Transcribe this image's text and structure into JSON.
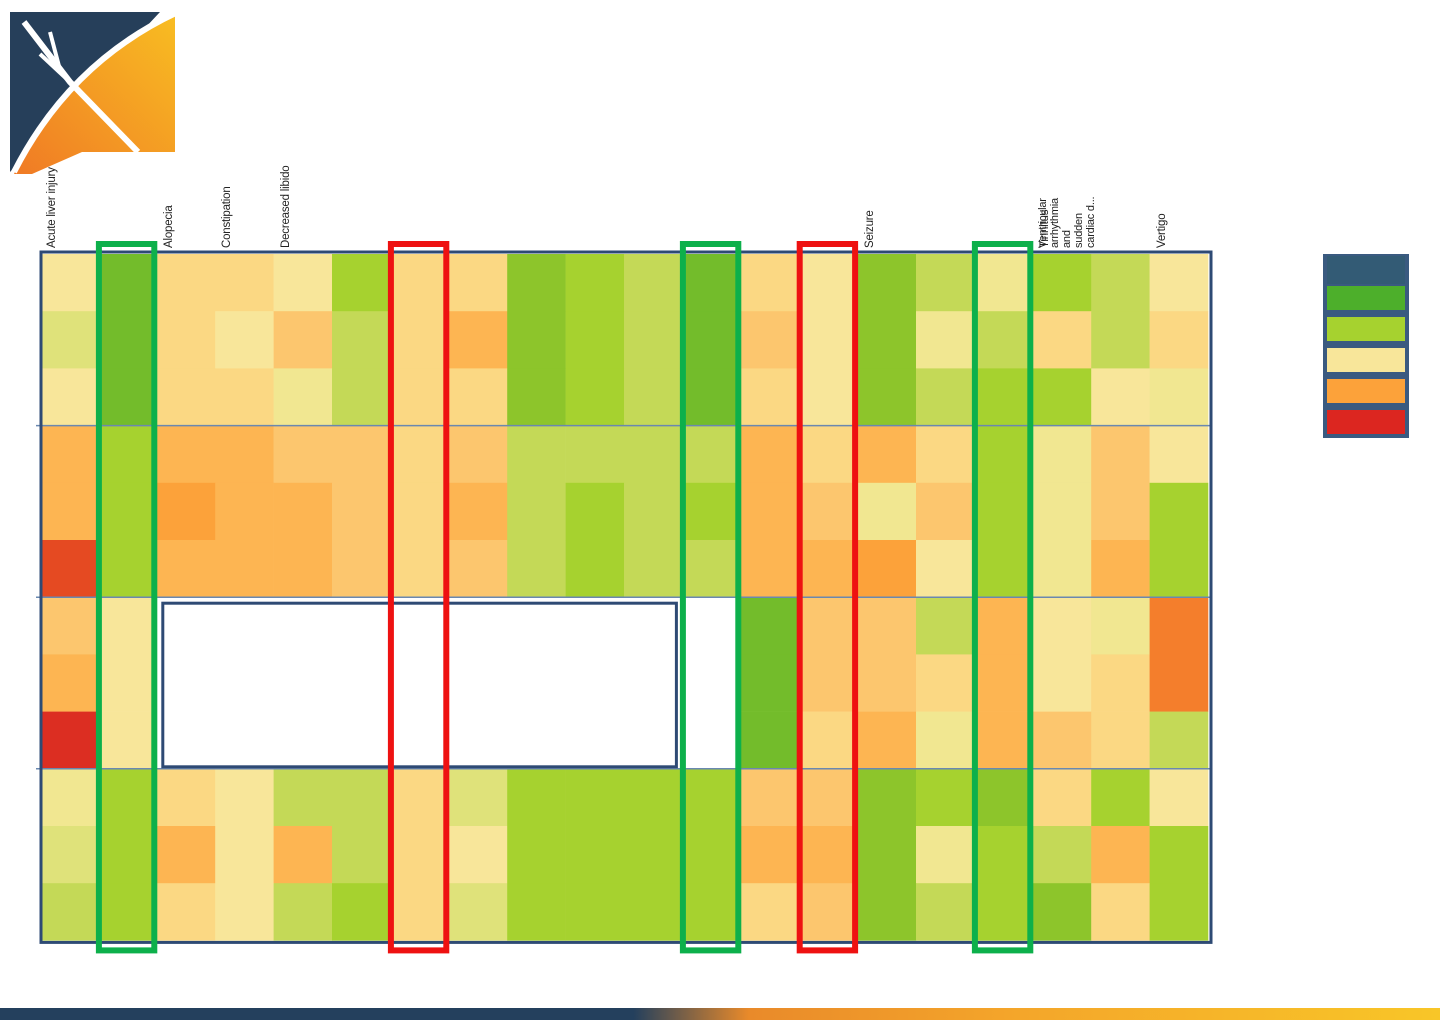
{
  "logo": {
    "name": "logo-icon"
  },
  "colors": {
    "frame": "#2e4a74",
    "header_swatch": "#335b75",
    "highlight_good": "#0db04b",
    "highlight_bad": "#ee1111",
    "palette": {
      "G": "#73bc2b",
      "g": "#8dc52b",
      "L": "#a6d22f",
      "l": "#c4d957",
      "y": "#dfe27a",
      "e": "#f1e791",
      "c": "#f8e69a",
      "p": "#fbd883",
      "q": "#fcc66e",
      "o": "#fdb552",
      "O": "#fca23a",
      "a": "#f47e2c",
      "A": "#ef6d2a",
      "r": "#e54a22",
      "R": "#dc2e22"
    }
  },
  "legend": {
    "swatches": [
      "#335b75",
      "#4daf2b",
      "#a6d22f",
      "#f8e69a",
      "#fca23a",
      "#dc2620"
    ]
  },
  "chart_data": {
    "type": "heatmap",
    "columns": [
      "Acute liver injury",
      "",
      "Alopecia",
      "Constipation",
      "Decreased libido",
      "",
      "",
      "",
      "",
      "",
      "",
      "",
      "",
      "",
      "Seizure",
      "",
      "",
      "Tinnitus",
      "Ventricular\narrhythmia and\nsudden cardiac d...",
      "Vertigo"
    ],
    "row_groups": 4,
    "rows_per_group": 3,
    "level_scale": [
      "G",
      "g",
      "L",
      "l",
      "y",
      "e",
      "c",
      "p",
      "q",
      "o",
      "O",
      "a",
      "A",
      "r",
      "R"
    ],
    "cells": [
      "cGppcLppgLlGpcgleLlc",
      "yGpcqlpogLlGqcgelplp",
      "cGppelppgLlGpcglLLce",
      "oLooqqpqllllopopLeqc",
      "oLOooqpolLlLoqeqLeqL",
      "rLoooqpqlLllooOcLeoL",
      "qc..........Gqqlocea",
      "oc..........Gqqpocpa",
      "Rc..........Gpoeoqpl",
      "eLpcllpyLLLLqqgLgpLc",
      "yLocolpcLLLLoogeLloL",
      "lLpclLpyLLLLpqglLgpL"
    ],
    "blank_region": {
      "columns": [
        2,
        10
      ],
      "rows": [
        6,
        8
      ]
    },
    "highlighted_columns": {
      "green": [
        1,
        11,
        16
      ],
      "red": [
        6,
        13
      ]
    }
  }
}
